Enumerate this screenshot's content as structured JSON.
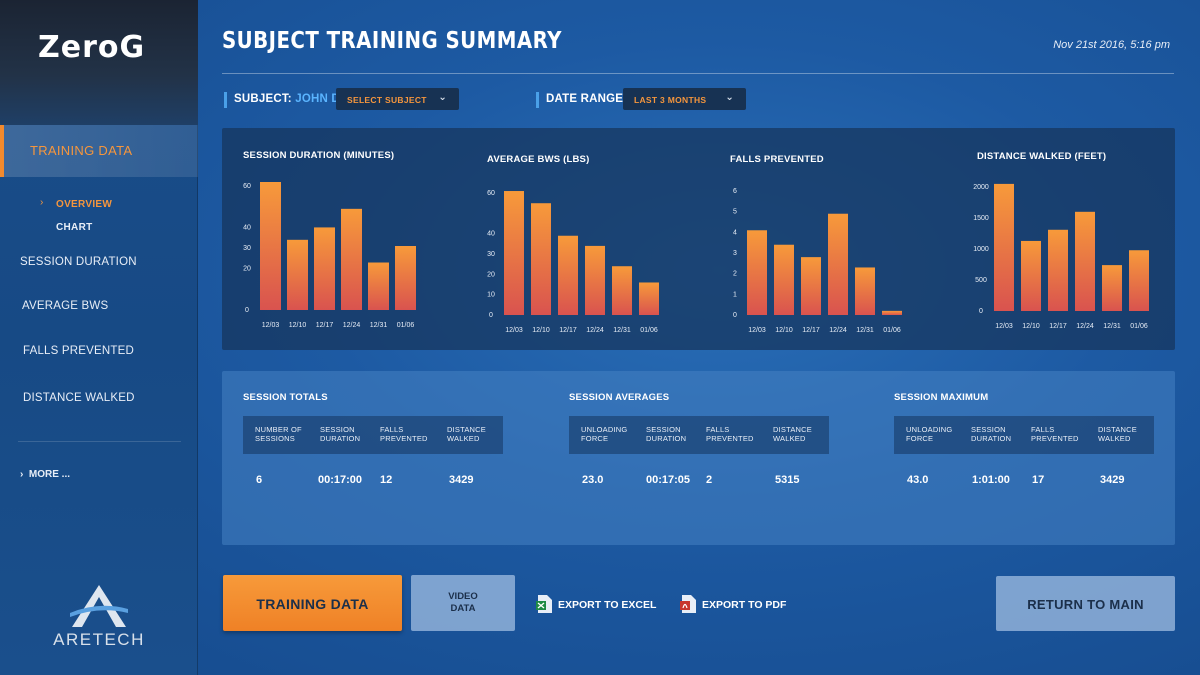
{
  "app": {
    "brand": "ZeroG",
    "company": "ARETECH"
  },
  "header": {
    "title": "SUBJECT TRAINING SUMMARY",
    "datetime": "Nov 21st 2016, 5:16 pm"
  },
  "sidebar": {
    "active_item": "TRAINING DATA",
    "sub_items": [
      "OVERVIEW",
      "CHART"
    ],
    "items": [
      "SESSION DURATION",
      "AVERAGE BWS",
      "FALLS PREVENTED",
      "DISTANCE WALKED"
    ],
    "more": "MORE ..."
  },
  "filters": {
    "subject_label": "SUBJECT:",
    "subject_value": "JOHN DOE",
    "subject_select": "SELECT SUBJECT",
    "date_label": "DATE RANGE:",
    "date_select": "LAST 3 MONTHS"
  },
  "charts": [
    {
      "title": "SESSION DURATION (MINUTES)"
    },
    {
      "title": "AVERAGE BWS (LBS)"
    },
    {
      "title": "FALLS PREVENTED"
    },
    {
      "title": "DISTANCE WALKED (FEET)"
    }
  ],
  "chart_data": [
    {
      "type": "bar",
      "title": "SESSION DURATION (MINUTES)",
      "categories": [
        "12/03",
        "12/10",
        "12/17",
        "12/24",
        "12/31",
        "01/06"
      ],
      "values": [
        62,
        34,
        40,
        49,
        23,
        31
      ],
      "yticks": [
        0,
        20,
        30,
        40,
        60
      ],
      "ylim": [
        0,
        62
      ]
    },
    {
      "type": "bar",
      "title": "AVERAGE BWS (LBS)",
      "categories": [
        "12/03",
        "12/10",
        "12/17",
        "12/24",
        "12/31",
        "01/06"
      ],
      "values": [
        61,
        55,
        39,
        34,
        24,
        16
      ],
      "yticks": [
        0,
        10,
        20,
        30,
        40,
        60
      ],
      "ylim": [
        0,
        62
      ]
    },
    {
      "type": "bar",
      "title": "FALLS PREVENTED",
      "categories": [
        "12/03",
        "12/10",
        "12/17",
        "12/24",
        "12/31",
        "01/06"
      ],
      "values": [
        4.1,
        3.4,
        2.8,
        4.9,
        2.3,
        0.2
      ],
      "yticks": [
        0,
        1,
        2,
        3,
        4,
        5,
        6
      ],
      "ylim": [
        0,
        6
      ]
    },
    {
      "type": "bar",
      "title": "DISTANCE WALKED (FEET)",
      "categories": [
        "12/03",
        "12/10",
        "12/17",
        "12/24",
        "12/31",
        "01/06"
      ],
      "values": [
        2050,
        1130,
        1310,
        1600,
        740,
        980
      ],
      "yticks": [
        0,
        500,
        1000,
        1500,
        2000
      ],
      "ylim": [
        0,
        2000
      ]
    }
  ],
  "stats": {
    "totals": {
      "title": "SESSION TOTALS",
      "columns": [
        "NUMBER OF\nSESSIONS",
        "SESSION\nDURATION",
        "FALLS\nPREVENTED",
        "DISTANCE\nWALKED"
      ],
      "values": [
        "6",
        "00:17:00",
        "12",
        "3429"
      ]
    },
    "averages": {
      "title": "SESSION AVERAGES",
      "columns": [
        "UNLOADING\nFORCE",
        "SESSION\nDURATION",
        "FALLS\nPREVENTED",
        "DISTANCE\nWALKED"
      ],
      "values": [
        "23.0",
        "00:17:05",
        "2",
        "5315"
      ]
    },
    "maximum": {
      "title": "SESSION MAXIMUM",
      "columns": [
        "UNLOADING\nFORCE",
        "SESSION\nDURATION",
        "FALLS\nPREVENTED",
        "DISTANCE\nWALKED"
      ],
      "values": [
        "43.0",
        "1:01:00",
        "17",
        "3429"
      ]
    }
  },
  "buttons": {
    "training_data": "TRAINING DATA",
    "video_data": "VIDEO\nDATA",
    "export_excel": "EXPORT TO EXCEL",
    "export_pdf": "EXPORT TO PDF",
    "return_main": "RETURN TO MAIN"
  },
  "colors": {
    "accent": "#f28a2e",
    "bar_top": "#f79a3a",
    "bar_bottom": "#d9534f",
    "link": "#5ab4ff"
  }
}
